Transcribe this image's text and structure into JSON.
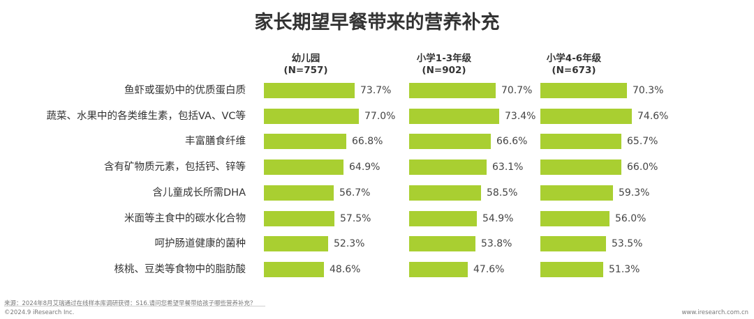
{
  "title": "家长期望早餐带来的营养补充",
  "chart_data": {
    "type": "bar",
    "orientation": "horizontal",
    "bar_color": "#a9cf31",
    "categories": [
      "鱼虾或蛋奶中的优质蛋白质",
      "蔬菜、水果中的各类维生素，包括VA、VC等",
      "丰富膳食纤维",
      "含有矿物质元素，包括钙、锌等",
      "含儿童成长所需DHA",
      "米面等主食中的碳水化合物",
      "呵护肠道健康的菌种",
      "核桃、豆类等食物中的脂肪酸"
    ],
    "panels": [
      {
        "name": "幼儿园",
        "n": "(N=757)",
        "values": [
          73.7,
          77.0,
          66.8,
          64.9,
          56.7,
          57.5,
          52.3,
          48.6
        ],
        "labels": [
          "73.7%",
          "77.0%",
          "66.8%",
          "64.9%",
          "56.7%",
          "57.5%",
          "52.3%",
          "48.6%"
        ]
      },
      {
        "name": "小学1-3年级",
        "n": "(N=902)",
        "values": [
          70.7,
          73.4,
          66.6,
          63.1,
          58.5,
          54.9,
          53.8,
          47.6
        ],
        "labels": [
          "70.7%",
          "73.4%",
          "66.6%",
          "63.1%",
          "58.5%",
          "54.9%",
          "53.8%",
          "47.6%"
        ]
      },
      {
        "name": "小学4-6年级",
        "n": "(N=673)",
        "values": [
          70.3,
          74.6,
          65.7,
          66.0,
          59.3,
          56.0,
          53.5,
          51.3
        ],
        "labels": [
          "70.3%",
          "74.6%",
          "65.7%",
          "66.0%",
          "59.3%",
          "56.0%",
          "53.5%",
          "51.3%"
        ]
      }
    ]
  },
  "footer": {
    "source": "来源：2024年8月艾瑞通过在线样本库调研获得：S16.请问您希望早餐带给孩子哪些营养补充？",
    "copyright": "©2024.9 iResearch Inc.",
    "url": "www.iresearch.com.cn"
  }
}
